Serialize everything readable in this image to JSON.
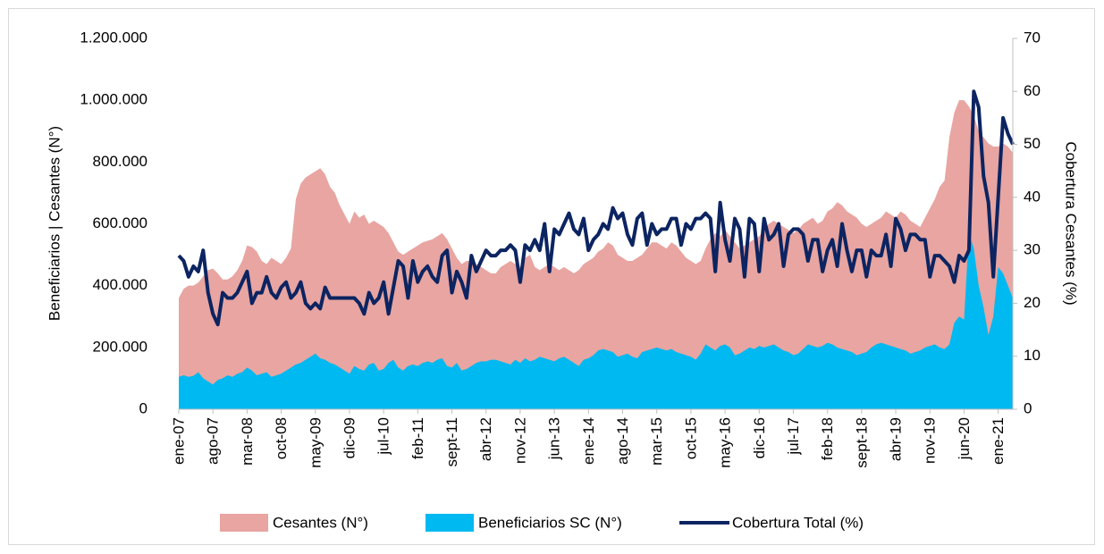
{
  "chart_data": {
    "type": "area",
    "y_label": "Beneficiarios  |  Cesantes (N°)",
    "y2_label": "Cobertura Cesantes (%)",
    "categories": [
      "ene-07",
      null,
      null,
      null,
      null,
      null,
      null,
      "ago-07",
      null,
      null,
      null,
      null,
      null,
      null,
      "mar-08",
      null,
      null,
      null,
      null,
      null,
      null,
      "oct-08",
      null,
      null,
      null,
      null,
      null,
      null,
      "may-09",
      null,
      null,
      null,
      null,
      null,
      null,
      "dic-09",
      null,
      null,
      null,
      null,
      null,
      null,
      "jul-10",
      null,
      null,
      null,
      null,
      null,
      null,
      "feb-11",
      null,
      null,
      null,
      null,
      null,
      null,
      "sept-11",
      null,
      null,
      null,
      null,
      null,
      null,
      "abr-12",
      null,
      null,
      null,
      null,
      null,
      null,
      "nov-12",
      null,
      null,
      null,
      null,
      null,
      null,
      "jun-13",
      null,
      null,
      null,
      null,
      null,
      null,
      "ene-14",
      null,
      null,
      null,
      null,
      null,
      null,
      "ago-14",
      null,
      null,
      null,
      null,
      null,
      null,
      "mar-15",
      null,
      null,
      null,
      null,
      null,
      null,
      "oct-15",
      null,
      null,
      null,
      null,
      null,
      null,
      "may-16",
      null,
      null,
      null,
      null,
      null,
      null,
      "dic-16",
      null,
      null,
      null,
      null,
      null,
      null,
      "jul-17",
      null,
      null,
      null,
      null,
      null,
      null,
      "feb-18",
      null,
      null,
      null,
      null,
      null,
      null,
      "sept-18",
      null,
      null,
      null,
      null,
      null,
      null,
      "abr-19",
      null,
      null,
      null,
      null,
      null,
      null,
      "nov-19",
      null,
      null,
      null,
      null,
      null,
      null,
      "jun-20",
      null,
      null,
      null,
      null,
      null,
      null,
      "ene-21",
      null,
      null,
      null
    ],
    "series": [
      {
        "name": "Cesantes (N°)",
        "type": "area",
        "color": "#e8a5a1",
        "values": [
          360000,
          390000,
          400000,
          400000,
          410000,
          430000,
          450000,
          455000,
          440000,
          420000,
          420000,
          430000,
          450000,
          480000,
          530000,
          525000,
          510000,
          480000,
          470000,
          490000,
          480000,
          470000,
          490000,
          520000,
          680000,
          730000,
          750000,
          760000,
          770000,
          780000,
          760000,
          720000,
          700000,
          660000,
          630000,
          600000,
          640000,
          620000,
          630000,
          600000,
          610000,
          600000,
          590000,
          570000,
          540000,
          510000,
          500000,
          510000,
          520000,
          530000,
          540000,
          545000,
          550000,
          560000,
          570000,
          550000,
          520000,
          490000,
          470000,
          480000,
          480000,
          470000,
          460000,
          450000,
          440000,
          440000,
          460000,
          470000,
          480000,
          470000,
          460000,
          490000,
          500000,
          460000,
          450000,
          460000,
          470000,
          460000,
          450000,
          460000,
          450000,
          440000,
          450000,
          470000,
          480000,
          490000,
          510000,
          520000,
          540000,
          530000,
          500000,
          490000,
          480000,
          480000,
          490000,
          500000,
          520000,
          540000,
          540000,
          530000,
          520000,
          540000,
          530000,
          510000,
          490000,
          480000,
          470000,
          480000,
          520000,
          550000,
          570000,
          560000,
          580000,
          560000,
          540000,
          520000,
          530000,
          540000,
          550000,
          560000,
          580000,
          600000,
          610000,
          600000,
          590000,
          580000,
          570000,
          580000,
          600000,
          610000,
          620000,
          600000,
          610000,
          640000,
          650000,
          670000,
          660000,
          640000,
          630000,
          620000,
          600000,
          590000,
          600000,
          610000,
          620000,
          640000,
          630000,
          620000,
          640000,
          630000,
          610000,
          600000,
          590000,
          620000,
          650000,
          680000,
          720000,
          740000,
          880000,
          960000,
          1000000,
          1000000,
          980000,
          950000,
          900000,
          880000,
          860000,
          850000,
          850000,
          860000,
          850000,
          830000
        ]
      },
      {
        "name": "Beneficiarios SC (N°)",
        "type": "area",
        "color": "#00b9f1",
        "values": [
          105000,
          110000,
          105000,
          108000,
          120000,
          100000,
          90000,
          80000,
          95000,
          100000,
          110000,
          105000,
          115000,
          120000,
          135000,
          125000,
          110000,
          115000,
          120000,
          105000,
          110000,
          115000,
          125000,
          135000,
          145000,
          150000,
          160000,
          170000,
          180000,
          165000,
          160000,
          150000,
          145000,
          135000,
          125000,
          115000,
          140000,
          130000,
          125000,
          145000,
          150000,
          125000,
          130000,
          150000,
          160000,
          135000,
          125000,
          140000,
          145000,
          140000,
          150000,
          155000,
          150000,
          160000,
          165000,
          140000,
          135000,
          150000,
          125000,
          130000,
          140000,
          150000,
          155000,
          155000,
          160000,
          160000,
          155000,
          150000,
          145000,
          160000,
          150000,
          165000,
          155000,
          160000,
          170000,
          165000,
          160000,
          155000,
          165000,
          170000,
          160000,
          150000,
          140000,
          160000,
          165000,
          175000,
          190000,
          195000,
          190000,
          185000,
          170000,
          175000,
          180000,
          170000,
          165000,
          185000,
          190000,
          195000,
          200000,
          195000,
          190000,
          195000,
          185000,
          180000,
          175000,
          170000,
          160000,
          180000,
          210000,
          200000,
          190000,
          205000,
          210000,
          200000,
          175000,
          180000,
          190000,
          200000,
          195000,
          205000,
          200000,
          205000,
          210000,
          200000,
          190000,
          185000,
          175000,
          180000,
          195000,
          210000,
          205000,
          200000,
          205000,
          215000,
          210000,
          200000,
          195000,
          190000,
          185000,
          175000,
          180000,
          185000,
          200000,
          210000,
          215000,
          210000,
          205000,
          200000,
          195000,
          190000,
          180000,
          185000,
          190000,
          200000,
          205000,
          210000,
          200000,
          195000,
          210000,
          280000,
          300000,
          290000,
          570000,
          520000,
          400000,
          330000,
          240000,
          300000,
          460000,
          440000,
          400000,
          360000
        ]
      },
      {
        "name": "Cobertura Total (%)",
        "type": "line",
        "axis": "y2",
        "color": "#0c2461",
        "values": [
          29,
          28,
          25,
          27,
          26,
          30,
          22,
          18,
          16,
          22,
          21,
          21,
          22,
          24,
          26,
          20,
          22,
          22,
          25,
          22,
          21,
          23,
          24,
          21,
          22,
          24,
          20,
          19,
          20,
          19,
          23,
          21,
          21,
          21,
          21,
          21,
          21,
          20,
          18,
          22,
          20,
          21,
          24,
          18,
          23,
          28,
          27,
          21,
          28,
          24,
          26,
          27,
          25,
          24,
          29,
          30,
          22,
          26,
          24,
          21,
          29,
          26,
          28,
          30,
          29,
          29,
          30,
          30,
          31,
          30,
          24,
          31,
          30,
          32,
          30,
          35,
          26,
          34,
          33,
          35,
          37,
          34,
          33,
          36,
          30,
          32,
          33,
          35,
          34,
          38,
          36,
          37,
          33,
          31,
          36,
          37,
          31,
          35,
          33,
          34,
          34,
          36,
          36,
          31,
          35,
          34,
          36,
          36,
          37,
          36,
          26,
          39,
          32,
          28,
          36,
          34,
          25,
          36,
          35,
          26,
          36,
          32,
          33,
          35,
          27,
          33,
          34,
          34,
          33,
          28,
          32,
          32,
          26,
          30,
          32,
          27,
          35,
          30,
          26,
          30,
          30,
          25,
          30,
          29,
          29,
          33,
          27,
          36,
          34,
          30,
          33,
          33,
          32,
          32,
          25,
          29,
          29,
          28,
          27,
          24,
          29,
          28,
          30,
          60,
          57,
          44,
          39,
          25,
          40,
          55,
          52,
          50
        ]
      }
    ],
    "ylim": [
      0,
      1200000
    ],
    "yticks": [
      0,
      {
        "value": 200000,
        "label": "200.000"
      },
      {
        "value": 400000,
        "label": "400.000"
      },
      {
        "value": 600000,
        "label": "600.000"
      },
      {
        "value": 800000,
        "label": "800.000"
      },
      {
        "value": 1000000,
        "label": "1.000.000"
      },
      {
        "value": 1200000,
        "label": "1.200.000"
      }
    ],
    "y2lim": [
      0,
      70
    ],
    "y2ticks": [
      0,
      10,
      20,
      30,
      40,
      50,
      60,
      70
    ],
    "legend": "bottom"
  }
}
